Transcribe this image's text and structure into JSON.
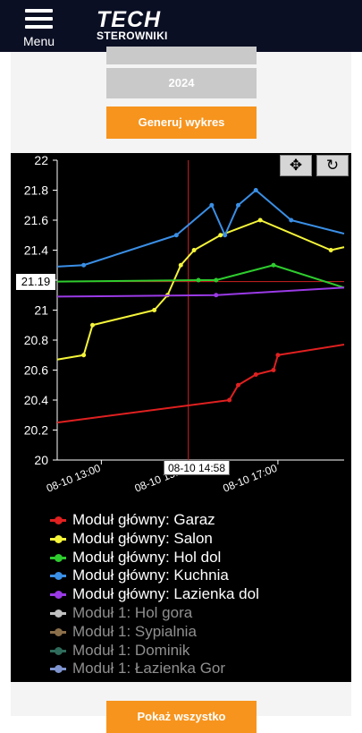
{
  "header": {
    "menu_label": "Menu",
    "logo_top": "TECH",
    "logo_bottom": "STEROWNIKI"
  },
  "controls": {
    "year_value": "2024",
    "generate_label": "Generuj wykres",
    "show_all_label": "Pokaż wszystko"
  },
  "toolbar": {
    "pan_glyph": "✥",
    "reset_glyph": "↻",
    "pan_icon": "move-icon",
    "reset_icon": "reset-icon"
  },
  "crosshair": {
    "x_label": "08-10 14:58",
    "y_label": "21.19"
  },
  "chart_data": {
    "type": "line",
    "ylim": [
      20,
      22
    ],
    "yticks": [
      "22",
      "21.8",
      "21.6",
      "21.4",
      "21.2",
      "21",
      "20.8",
      "20.6",
      "20.4",
      "20.2",
      "20"
    ],
    "xticks": [
      "08-10 13:00",
      "08-10 15:00",
      "08-10 17:00"
    ],
    "series": [
      {
        "name": "Moduł główny: Garaz",
        "color": "#e02020",
        "visible": true,
        "points": [
          [
            0,
            20.25
          ],
          [
            3.9,
            20.4
          ],
          [
            4.1,
            20.5
          ],
          [
            4.5,
            20.57
          ],
          [
            4.9,
            20.6
          ],
          [
            5.0,
            20.7
          ],
          [
            6.5,
            20.77
          ]
        ]
      },
      {
        "name": "Moduł główny: Salon",
        "color": "#f5f53a",
        "visible": true,
        "points": [
          [
            0,
            20.67
          ],
          [
            0.6,
            20.7
          ],
          [
            0.8,
            20.9
          ],
          [
            2.2,
            21.0
          ],
          [
            2.5,
            21.1
          ],
          [
            2.8,
            21.3
          ],
          [
            3.1,
            21.4
          ],
          [
            3.7,
            21.5
          ],
          [
            4.6,
            21.6
          ],
          [
            6.2,
            21.4
          ],
          [
            6.5,
            21.42
          ]
        ]
      },
      {
        "name": "Moduł główny: Hol dol",
        "color": "#2ecc2e",
        "visible": true,
        "points": [
          [
            0,
            21.19
          ],
          [
            3.2,
            21.2
          ],
          [
            3.6,
            21.2
          ],
          [
            4.9,
            21.3
          ],
          [
            6.5,
            21.15
          ]
        ]
      },
      {
        "name": "Moduł główny: Kuchnia",
        "color": "#3a8fe6",
        "visible": true,
        "points": [
          [
            0,
            21.29
          ],
          [
            0.6,
            21.3
          ],
          [
            2.7,
            21.5
          ],
          [
            3.5,
            21.7
          ],
          [
            3.8,
            21.5
          ],
          [
            4.1,
            21.7
          ],
          [
            4.5,
            21.8
          ],
          [
            5.3,
            21.6
          ],
          [
            6.5,
            21.51
          ]
        ]
      },
      {
        "name": "Moduł główny: Lazienka dol",
        "color": "#9a3ae6",
        "visible": true,
        "points": [
          [
            0,
            21.09
          ],
          [
            3.6,
            21.1
          ],
          [
            6.5,
            21.15
          ]
        ]
      },
      {
        "name": "Moduł 1: Hol gora",
        "color": "#c0c0c0",
        "visible": false,
        "points": []
      },
      {
        "name": "Moduł 1: Sypialnia",
        "color": "#8b6f4a",
        "visible": false,
        "points": []
      },
      {
        "name": "Moduł 1: Dominik",
        "color": "#2e6b5a",
        "visible": false,
        "points": []
      },
      {
        "name": "Moduł 1: Łazienka Gor",
        "color": "#7e94cf",
        "visible": false,
        "points": []
      }
    ]
  }
}
